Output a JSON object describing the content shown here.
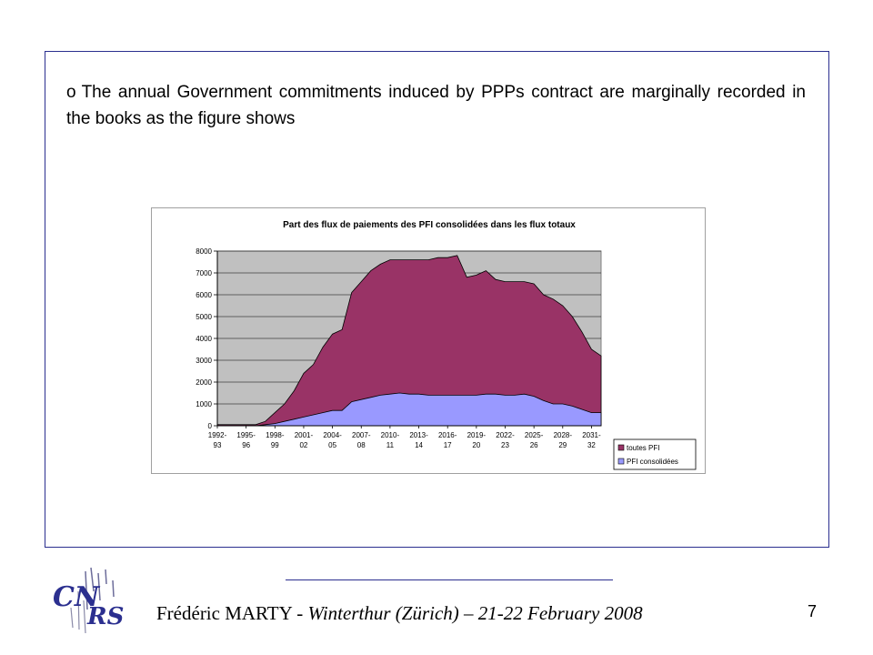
{
  "slide": {
    "bullet_mark": "o",
    "bullet_text": "The annual Government commitments induced by PPPs contract are marginally recorded in the books as the figure shows",
    "footer_name": "Frédéric MARTY - ",
    "footer_place": "Winterthur (Zürich) – 21-22 February 2008",
    "page_number": "7",
    "logo_text": "CNRS"
  },
  "chart_data": {
    "type": "area",
    "title": "Part des flux de paiements des PFI consolidées dans les flux totaux",
    "xlabel": "",
    "ylabel": "",
    "ylim": [
      0,
      8000
    ],
    "y_ticks": [
      "0",
      "1000",
      "2000",
      "3000",
      "4000",
      "5000",
      "6000",
      "7000",
      "8000"
    ],
    "x_tick_labels": [
      [
        "1992-",
        "93"
      ],
      [
        "1995-",
        "96"
      ],
      [
        "1998-",
        "99"
      ],
      [
        "2001-",
        "02"
      ],
      [
        "2004-",
        "05"
      ],
      [
        "2007-",
        "08"
      ],
      [
        "2010-",
        "11"
      ],
      [
        "2013-",
        "14"
      ],
      [
        "2016-",
        "17"
      ],
      [
        "2019-",
        "20"
      ],
      [
        "2022-",
        "23"
      ],
      [
        "2025-",
        "26"
      ],
      [
        "2028-",
        "29"
      ],
      [
        "2031-",
        "32"
      ]
    ],
    "grid": true,
    "legend_position": "bottom-right",
    "colors": {
      "plot_bg": "#c0c0c0",
      "toutes": "#993366",
      "consolidees": "#9999ff"
    },
    "series": [
      {
        "name": "toutes PFI",
        "values": [
          50,
          50,
          50,
          50,
          50,
          200,
          600,
          1000,
          1600,
          2400,
          2800,
          3600,
          4200,
          4400,
          6100,
          6600,
          7100,
          7400,
          7600,
          7600,
          7600,
          7600,
          7600,
          7700,
          7700,
          7800,
          6800,
          6900,
          7100,
          6700,
          6600,
          6600,
          6600,
          6500,
          6000,
          5800,
          5500,
          5000,
          4300,
          3500,
          3200
        ]
      },
      {
        "name": "PFI consolidées",
        "values": [
          0,
          0,
          0,
          0,
          0,
          50,
          100,
          200,
          300,
          400,
          500,
          600,
          700,
          700,
          1100,
          1200,
          1300,
          1400,
          1450,
          1500,
          1450,
          1450,
          1400,
          1400,
          1400,
          1400,
          1400,
          1400,
          1450,
          1450,
          1400,
          1400,
          1450,
          1350,
          1150,
          1000,
          1000,
          900,
          750,
          600,
          600
        ]
      }
    ]
  }
}
